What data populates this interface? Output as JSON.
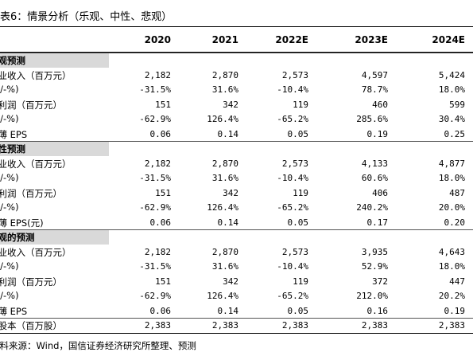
{
  "title": "表6：情景分析（乐观、中性、悲观）",
  "table": {
    "columns": [
      "2020",
      "2021",
      "2022E",
      "2023E",
      "2024E"
    ],
    "sections": [
      {
        "label": "乐观预测",
        "rows": [
          [
            "营业收入（百万元）",
            "2,182",
            "2,870",
            "2,573",
            "4,597",
            "5,424"
          ],
          [
            "(+/-%)",
            "-31.5%",
            "31.6%",
            "-10.4%",
            "78.7%",
            "18.0%"
          ],
          [
            "净利润（百万元）",
            "151",
            "342",
            "119",
            "460",
            "599"
          ],
          [
            "(+/-%)",
            "-62.9%",
            "126.4%",
            "-65.2%",
            "285.6%",
            "30.4%"
          ],
          [
            "摊薄 EPS",
            "0.06",
            "0.14",
            "0.05",
            "0.19",
            "0.25"
          ]
        ]
      },
      {
        "label": "中性预测",
        "rows": [
          [
            "营业收入（百万元）",
            "2,182",
            "2,870",
            "2,573",
            "4,133",
            "4,877"
          ],
          [
            "(+/-%)",
            "-31.5%",
            "31.6%",
            "-10.4%",
            "60.6%",
            "18.0%"
          ],
          [
            "净利润（百万元）",
            "151",
            "342",
            "119",
            "406",
            "487"
          ],
          [
            "(+/-%)",
            "-62.9%",
            "126.4%",
            "-65.2%",
            "240.2%",
            "20.0%"
          ],
          [
            "摊薄 EPS(元)",
            "0.06",
            "0.14",
            "0.05",
            "0.17",
            "0.20"
          ]
        ]
      },
      {
        "label": "悲观的预测",
        "rows": [
          [
            "营业收入（百万元）",
            "2,182",
            "2,870",
            "2,573",
            "3,935",
            "4,643"
          ],
          [
            "(+/-%)",
            "-31.5%",
            "31.6%",
            "-10.4%",
            "52.9%",
            "18.0%"
          ],
          [
            "净利润（百万元）",
            "151",
            "342",
            "119",
            "372",
            "447"
          ],
          [
            "(+/-%)",
            "-62.9%",
            "126.4%",
            "-65.2%",
            "212.0%",
            "20.2%"
          ],
          [
            "摊薄 EPS",
            "0.06",
            "0.14",
            "0.05",
            "0.16",
            "0.19"
          ]
        ]
      }
    ],
    "total": [
      "总股本（百万股）",
      "2,383",
      "2,383",
      "2,383",
      "2,383",
      "2,383"
    ]
  },
  "source": "资料来源：Wind，国信证券经济研究所整理、预测"
}
